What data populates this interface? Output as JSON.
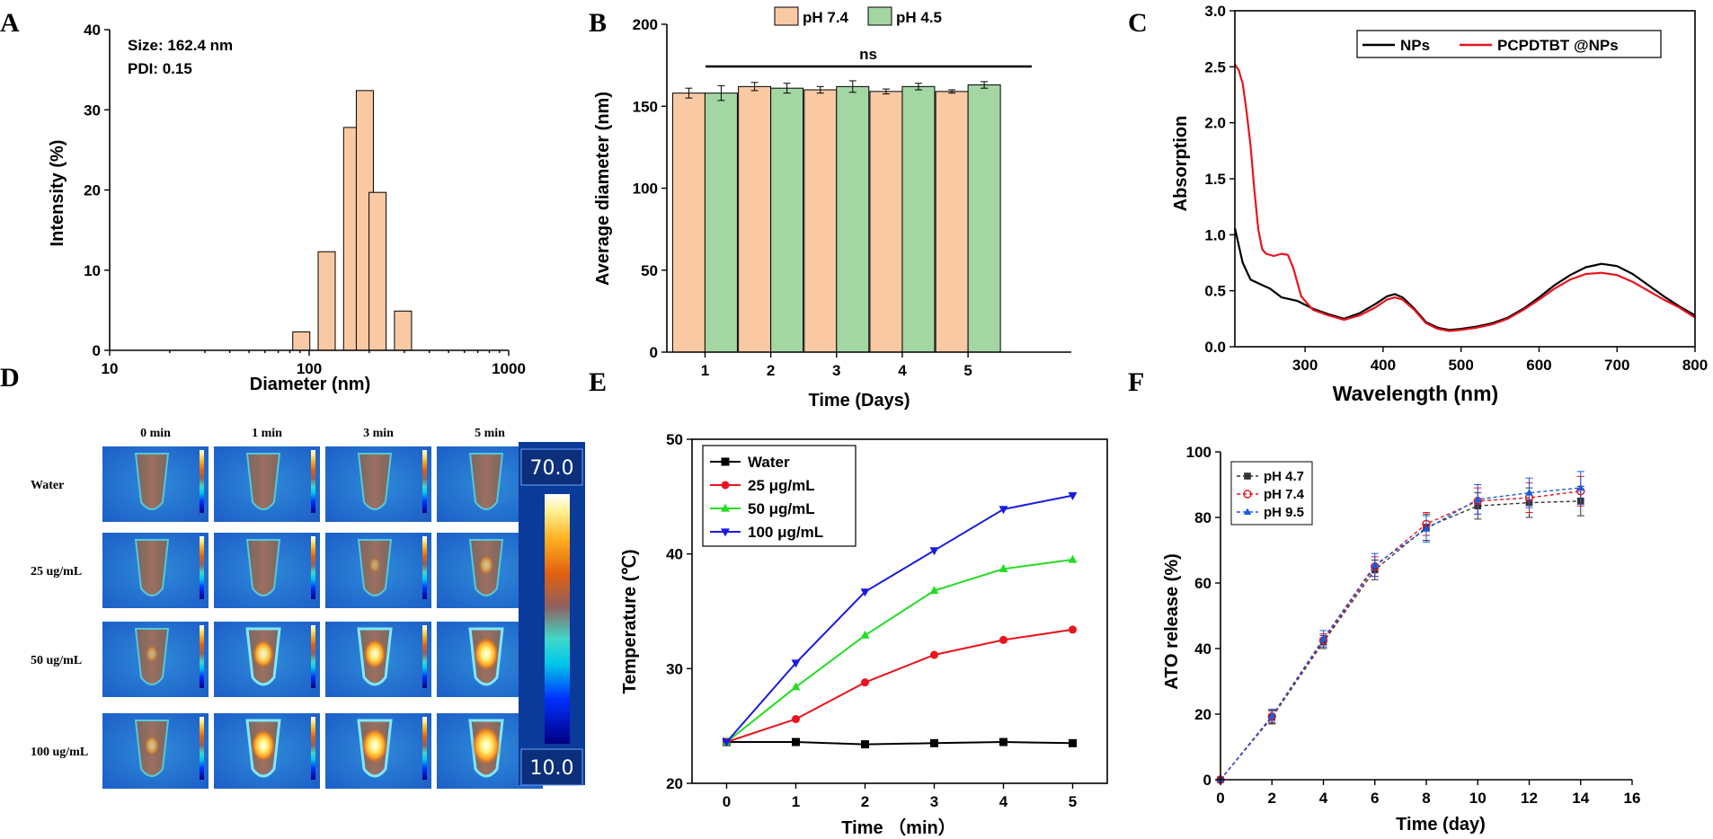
{
  "panels": {
    "A": "A",
    "B": "B",
    "C": "C",
    "D": "D",
    "E": "E",
    "F": "F"
  },
  "chart_data": [
    {
      "id": "A",
      "type": "bar",
      "xscale": "log",
      "xlabel": "Diameter (nm)",
      "ylabel": "Intensity (%)",
      "xlim": [
        10,
        1000
      ],
      "ylim": [
        0,
        40
      ],
      "xticks": [
        10,
        100,
        1000
      ],
      "yticks": [
        0,
        10,
        20,
        30,
        40
      ],
      "xtick_labels": [
        "10",
        "100",
        "1000"
      ],
      "ytick_labels": [
        "0",
        "10",
        "20",
        "30",
        "40"
      ],
      "bin_centers": [
        91.3,
        122.4,
        164.2,
        190.1,
        220.2,
        295.3
      ],
      "values": [
        2.3,
        12.3,
        27.8,
        32.4,
        19.7,
        4.9
      ],
      "annotations": [
        "Size: 162.4 nm",
        "PDI: 0.15"
      ],
      "bar_color": "#F9C9A4"
    },
    {
      "id": "B",
      "type": "bar",
      "categories": [
        "1",
        "2",
        "3",
        "4",
        "5"
      ],
      "series": [
        {
          "name": "pH 7.4",
          "values": [
            158,
            162,
            160,
            159,
            159
          ],
          "errors": [
            3,
            2.5,
            2,
            1.5,
            1
          ],
          "color": "#F9C9A4"
        },
        {
          "name": "pH 4.5",
          "values": [
            158,
            161,
            162,
            162,
            163
          ],
          "errors": [
            4.5,
            3,
            3.5,
            2,
            2
          ],
          "color": "#A4D6A4"
        }
      ],
      "xlabel": "Time (Days)",
      "ylabel": "Average diameter (nm)",
      "ylim": [
        0,
        200
      ],
      "yticks": [
        0,
        50,
        100,
        150,
        200
      ],
      "ytick_labels": [
        "0",
        "50",
        "100",
        "150",
        "200"
      ],
      "annotation": "ns"
    },
    {
      "id": "C",
      "type": "line",
      "xlabel": "Wavelength (nm)",
      "ylabel": "Absorption",
      "xlim": [
        210,
        800
      ],
      "ylim": [
        0,
        3.0
      ],
      "xticks": [
        300,
        400,
        500,
        600,
        700,
        800
      ],
      "yticks": [
        0,
        0.5,
        1.0,
        1.5,
        2.0,
        2.5,
        3.0
      ],
      "xtick_labels": [
        "300",
        "400",
        "500",
        "600",
        "700",
        "800"
      ],
      "ytick_labels": [
        "0.0",
        "0.5",
        "1.0",
        "1.5",
        "2.0",
        "2.5",
        "3.0"
      ],
      "series": [
        {
          "name": "NPs",
          "color": "#000000",
          "x": [
            210,
            220,
            230,
            245,
            255,
            270,
            290,
            310,
            330,
            350,
            370,
            390,
            405,
            415,
            425,
            440,
            455,
            470,
            485,
            500,
            520,
            540,
            560,
            580,
            600,
            620,
            640,
            660,
            680,
            700,
            720,
            740,
            760,
            780,
            800
          ],
          "y": [
            1.06,
            0.75,
            0.6,
            0.55,
            0.52,
            0.44,
            0.41,
            0.34,
            0.29,
            0.25,
            0.3,
            0.38,
            0.45,
            0.47,
            0.44,
            0.34,
            0.22,
            0.17,
            0.15,
            0.16,
            0.18,
            0.21,
            0.26,
            0.34,
            0.44,
            0.55,
            0.64,
            0.71,
            0.74,
            0.72,
            0.65,
            0.55,
            0.45,
            0.36,
            0.28
          ]
        },
        {
          "name": "PCPDTBT @NPs",
          "color": "#E8141E",
          "x": [
            210,
            215,
            220,
            225,
            230,
            235,
            240,
            245,
            250,
            260,
            270,
            278,
            285,
            295,
            310,
            330,
            350,
            370,
            390,
            405,
            415,
            425,
            440,
            455,
            470,
            485,
            500,
            520,
            540,
            560,
            580,
            600,
            620,
            640,
            660,
            680,
            700,
            720,
            740,
            760,
            780,
            800
          ],
          "y": [
            2.52,
            2.47,
            2.35,
            2.1,
            1.8,
            1.4,
            1.05,
            0.87,
            0.83,
            0.81,
            0.83,
            0.82,
            0.7,
            0.45,
            0.33,
            0.28,
            0.24,
            0.28,
            0.35,
            0.42,
            0.44,
            0.42,
            0.33,
            0.21,
            0.16,
            0.14,
            0.15,
            0.17,
            0.2,
            0.25,
            0.33,
            0.42,
            0.52,
            0.6,
            0.65,
            0.66,
            0.64,
            0.58,
            0.5,
            0.42,
            0.35,
            0.26
          ]
        }
      ]
    },
    {
      "id": "E",
      "type": "line",
      "xlabel": "Time （min）",
      "ylabel": "Temperature (℃)",
      "xlim": [
        -0.5,
        5.5
      ],
      "ylim": [
        20,
        50
      ],
      "xticks": [
        0,
        1,
        2,
        3,
        4,
        5
      ],
      "yticks": [
        20,
        30,
        40,
        50
      ],
      "xtick_labels": [
        "0",
        "1",
        "2",
        "3",
        "4",
        "5"
      ],
      "ytick_labels": [
        "20",
        "30",
        "40",
        "50"
      ],
      "x": [
        0,
        1,
        2,
        3,
        4,
        5
      ],
      "series": [
        {
          "name": "Water",
          "values": [
            23.6,
            23.6,
            23.4,
            23.5,
            23.6,
            23.5
          ],
          "color": "#000000",
          "marker": "square"
        },
        {
          "name": "25 μg/mL",
          "values": [
            23.6,
            25.6,
            28.8,
            31.2,
            32.5,
            33.4
          ],
          "color": "#E8141E",
          "marker": "circle"
        },
        {
          "name": "50 μg/mL",
          "values": [
            23.6,
            28.4,
            32.9,
            36.8,
            38.7,
            39.5
          ],
          "color": "#22DD22",
          "marker": "triangle-up"
        },
        {
          "name": "100 μg/mL",
          "values": [
            23.6,
            30.5,
            36.7,
            40.3,
            43.9,
            45.1
          ],
          "color": "#1A1AE0",
          "marker": "triangle-down"
        }
      ]
    },
    {
      "id": "F",
      "type": "line",
      "xlabel": "Time (day)",
      "ylabel": "ATO release (%)",
      "xlim": [
        0,
        16
      ],
      "ylim": [
        0,
        100
      ],
      "xticks": [
        0,
        2,
        4,
        6,
        8,
        10,
        12,
        14,
        16
      ],
      "yticks": [
        0,
        20,
        40,
        60,
        80,
        100
      ],
      "xtick_labels": [
        "0",
        "2",
        "4",
        "6",
        "8",
        "10",
        "12",
        "14",
        "16"
      ],
      "ytick_labels": [
        "0",
        "20",
        "40",
        "60",
        "80",
        "100"
      ],
      "x": [
        0,
        2,
        4,
        6,
        8,
        10,
        12,
        14
      ],
      "series": [
        {
          "name": "pH 4.7",
          "values": [
            0,
            19,
            42,
            64,
            77,
            83.5,
            84.5,
            85
          ],
          "errors": [
            0,
            2,
            2,
            3,
            4,
            4,
            4.5,
            4.5
          ],
          "color": "#333333",
          "marker": "square"
        },
        {
          "name": "pH 7.4",
          "values": [
            0,
            19.3,
            42.5,
            65,
            78,
            85,
            86,
            88
          ],
          "errors": [
            0,
            2,
            2,
            3,
            3.5,
            4,
            4.5,
            4.5
          ],
          "color": "#E8141E",
          "marker": "circle"
        },
        {
          "name": "pH 9.5",
          "values": [
            0,
            19.5,
            43,
            65.5,
            76.5,
            85.5,
            87.5,
            89
          ],
          "errors": [
            0,
            2,
            2.5,
            3.5,
            4,
            4.5,
            4.5,
            5
          ],
          "color": "#1A5AE0",
          "marker": "triangle-up"
        }
      ]
    }
  ],
  "thermal": {
    "columns": [
      "0 min",
      "1 min",
      "3 min",
      "5 min"
    ],
    "rows": [
      {
        "label": "Water",
        "glow": [
          0,
          0,
          0,
          0
        ]
      },
      {
        "label": "25 ug/mL",
        "glow": [
          0,
          0,
          0.1,
          0.25
        ]
      },
      {
        "label": "50 ug/mL",
        "glow": [
          0.15,
          0.6,
          0.65,
          0.8
        ]
      },
      {
        "label": "100 ug/mL",
        "glow": [
          0.25,
          0.75,
          0.85,
          1.0
        ]
      }
    ],
    "scale_max": "70.0",
    "scale_min": "10.0"
  }
}
